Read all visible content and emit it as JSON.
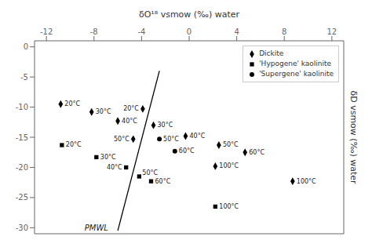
{
  "chart_data": {
    "type": "scatter",
    "x_label": "δO¹⁸ vsmow (‰) water",
    "y_label": "δD vsmow (‰) water",
    "xlim": [
      -13,
      13
    ],
    "ylim": [
      -31,
      1
    ],
    "xticks": [
      -12,
      -8,
      -4,
      0,
      4,
      8,
      12
    ],
    "yticks": [
      -30,
      -25,
      -20,
      -15,
      -10,
      -5,
      0
    ],
    "grid": false,
    "legend": "upper right",
    "series": [
      {
        "name": "Dickite",
        "marker": "diamond",
        "color": "black",
        "x": [
          -10.8,
          -8.2,
          -6.0,
          -3.9,
          -3.0,
          -4.7,
          -0.3,
          2.5,
          4.7,
          2.2,
          8.7
        ],
        "values": [
          -9.5,
          -10.8,
          -12.3,
          -10.3,
          -13.0,
          -15.3,
          -14.8,
          -16.3,
          -17.5,
          -19.8,
          -22.3
        ],
        "point_labels": [
          "20°C",
          "30°C",
          "40°C",
          "20°C",
          "30°C",
          "50°C",
          "40°C",
          "50°C",
          "60°C",
          "100°C",
          "100°C"
        ]
      },
      {
        "name": "'Hypogene' kaolinite",
        "marker": "square",
        "color": "black",
        "x": [
          -10.7,
          -7.8,
          -5.3,
          -4.2,
          -3.2,
          2.2
        ],
        "values": [
          -16.3,
          -18.3,
          -20.0,
          -21.5,
          -22.3,
          -26.5
        ],
        "point_labels": [
          "20°C",
          "30°C",
          "40°C",
          "50°C",
          "60°C",
          "100°C"
        ]
      },
      {
        "name": "'Supergene' kaolinite",
        "marker": "circle",
        "color": "black",
        "x": [
          -2.5,
          -1.2
        ],
        "values": [
          -15.3,
          -17.3
        ],
        "point_labels": [
          "50°C",
          "60°C"
        ]
      },
      {
        "type": "line",
        "color": "black",
        "x": [
          -6.0,
          -2.5
        ],
        "values": [
          -30.5,
          -4.0
        ]
      }
    ],
    "annotations": [
      {
        "text": "PMWL",
        "x": -6.8,
        "y": -29.5
      }
    ]
  }
}
